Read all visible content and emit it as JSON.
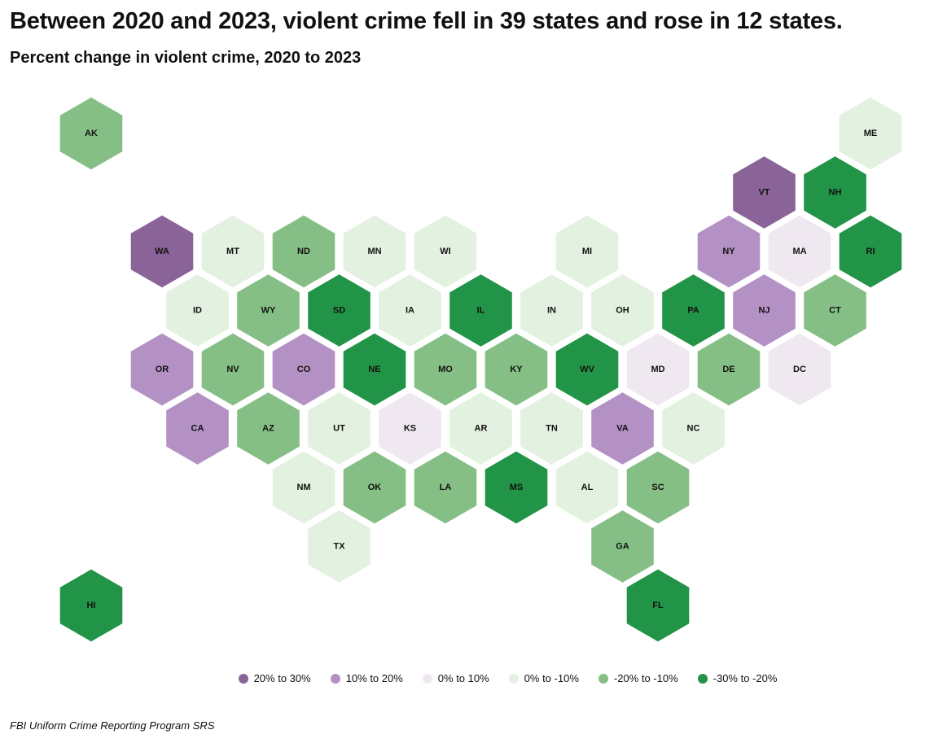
{
  "title": "Between 2020 and 2023, violent crime fell in 39 states and rose in 12 states.",
  "subtitle": "Percent change in violent crime, 2020 to 2023",
  "source": "FBI Uniform Crime Reporting Program SRS",
  "categories": [
    {
      "key": "c1",
      "label": "20% to 30%",
      "color": "#8a6498"
    },
    {
      "key": "c2",
      "label": "10% to 20%",
      "color": "#b491c4"
    },
    {
      "key": "c3",
      "label": "0% to 10%",
      "color": "#efe8f1"
    },
    {
      "key": "c4",
      "label": "0% to -10%",
      "color": "#e3f1e0"
    },
    {
      "key": "c5",
      "label": "-20% to -10%",
      "color": "#86bf86"
    },
    {
      "key": "c6",
      "label": "-30% to -20%",
      "color": "#229447"
    }
  ],
  "states": [
    {
      "abbr": "AK",
      "row": 0,
      "col": 0,
      "cat": "c5"
    },
    {
      "abbr": "ME",
      "row": 0,
      "col": 11,
      "cat": "c4"
    },
    {
      "abbr": "VT",
      "row": 1,
      "col": 9.5,
      "cat": "c1"
    },
    {
      "abbr": "NH",
      "row": 1,
      "col": 10.5,
      "cat": "c6"
    },
    {
      "abbr": "WA",
      "row": 2,
      "col": 1,
      "cat": "c1"
    },
    {
      "abbr": "MT",
      "row": 2,
      "col": 2,
      "cat": "c4"
    },
    {
      "abbr": "ND",
      "row": 2,
      "col": 3,
      "cat": "c5"
    },
    {
      "abbr": "MN",
      "row": 2,
      "col": 4,
      "cat": "c4"
    },
    {
      "abbr": "WI",
      "row": 2,
      "col": 5,
      "cat": "c4"
    },
    {
      "abbr": "MI",
      "row": 2,
      "col": 7,
      "cat": "c4"
    },
    {
      "abbr": "NY",
      "row": 2,
      "col": 9,
      "cat": "c2"
    },
    {
      "abbr": "MA",
      "row": 2,
      "col": 10,
      "cat": "c3"
    },
    {
      "abbr": "RI",
      "row": 2,
      "col": 11,
      "cat": "c6"
    },
    {
      "abbr": "ID",
      "row": 3,
      "col": 1.5,
      "cat": "c4"
    },
    {
      "abbr": "WY",
      "row": 3,
      "col": 2.5,
      "cat": "c5"
    },
    {
      "abbr": "SD",
      "row": 3,
      "col": 3.5,
      "cat": "c6"
    },
    {
      "abbr": "IA",
      "row": 3,
      "col": 4.5,
      "cat": "c4"
    },
    {
      "abbr": "IL",
      "row": 3,
      "col": 5.5,
      "cat": "c6"
    },
    {
      "abbr": "IN",
      "row": 3,
      "col": 6.5,
      "cat": "c4"
    },
    {
      "abbr": "OH",
      "row": 3,
      "col": 7.5,
      "cat": "c4"
    },
    {
      "abbr": "PA",
      "row": 3,
      "col": 8.5,
      "cat": "c6"
    },
    {
      "abbr": "NJ",
      "row": 3,
      "col": 9.5,
      "cat": "c2"
    },
    {
      "abbr": "CT",
      "row": 3,
      "col": 10.5,
      "cat": "c5"
    },
    {
      "abbr": "OR",
      "row": 4,
      "col": 1,
      "cat": "c2"
    },
    {
      "abbr": "NV",
      "row": 4,
      "col": 2,
      "cat": "c5"
    },
    {
      "abbr": "CO",
      "row": 4,
      "col": 3,
      "cat": "c2"
    },
    {
      "abbr": "NE",
      "row": 4,
      "col": 4,
      "cat": "c6"
    },
    {
      "abbr": "MO",
      "row": 4,
      "col": 5,
      "cat": "c5"
    },
    {
      "abbr": "KY",
      "row": 4,
      "col": 6,
      "cat": "c5"
    },
    {
      "abbr": "WV",
      "row": 4,
      "col": 7,
      "cat": "c6"
    },
    {
      "abbr": "MD",
      "row": 4,
      "col": 8,
      "cat": "c3"
    },
    {
      "abbr": "DE",
      "row": 4,
      "col": 9,
      "cat": "c5"
    },
    {
      "abbr": "DC",
      "row": 4,
      "col": 10,
      "cat": "c3"
    },
    {
      "abbr": "CA",
      "row": 5,
      "col": 1.5,
      "cat": "c2"
    },
    {
      "abbr": "AZ",
      "row": 5,
      "col": 2.5,
      "cat": "c5"
    },
    {
      "abbr": "UT",
      "row": 5,
      "col": 3.5,
      "cat": "c4"
    },
    {
      "abbr": "KS",
      "row": 5,
      "col": 4.5,
      "cat": "c3"
    },
    {
      "abbr": "AR",
      "row": 5,
      "col": 5.5,
      "cat": "c4"
    },
    {
      "abbr": "TN",
      "row": 5,
      "col": 6.5,
      "cat": "c4"
    },
    {
      "abbr": "VA",
      "row": 5,
      "col": 7.5,
      "cat": "c2"
    },
    {
      "abbr": "NC",
      "row": 5,
      "col": 8.5,
      "cat": "c4"
    },
    {
      "abbr": "NM",
      "row": 6,
      "col": 3,
      "cat": "c4"
    },
    {
      "abbr": "OK",
      "row": 6,
      "col": 4,
      "cat": "c5"
    },
    {
      "abbr": "LA",
      "row": 6,
      "col": 5,
      "cat": "c5"
    },
    {
      "abbr": "MS",
      "row": 6,
      "col": 6,
      "cat": "c6"
    },
    {
      "abbr": "AL",
      "row": 6,
      "col": 7,
      "cat": "c4"
    },
    {
      "abbr": "SC",
      "row": 6,
      "col": 8,
      "cat": "c5"
    },
    {
      "abbr": "TX",
      "row": 7,
      "col": 3.5,
      "cat": "c4"
    },
    {
      "abbr": "GA",
      "row": 7,
      "col": 7.5,
      "cat": "c5"
    },
    {
      "abbr": "HI",
      "row": 8,
      "col": 0,
      "cat": "c6"
    },
    {
      "abbr": "FL",
      "row": 8,
      "col": 8,
      "cat": "c6"
    }
  ]
}
